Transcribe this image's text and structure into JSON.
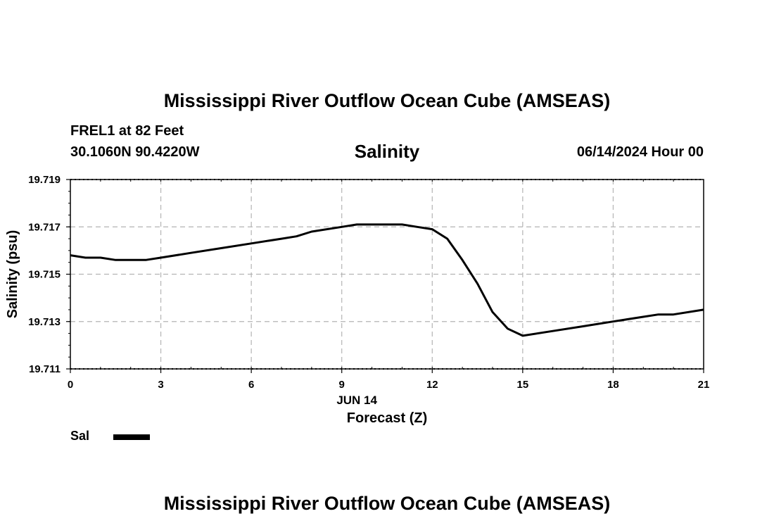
{
  "header": {
    "main_title": "Mississippi River Outflow Ocean Cube (AMSEAS)",
    "station": "FREL1 at 82 Feet",
    "coords": "30.1060N  90.4220W",
    "variable": "Salinity",
    "datetime": "06/14/2024 Hour 00"
  },
  "footer": {
    "repeat_title": "Mississippi River Outflow Ocean Cube (AMSEAS)"
  },
  "legend": {
    "label": "Sal"
  },
  "chart_data": {
    "type": "line",
    "title": "Salinity",
    "xlabel": "Forecast (Z)",
    "xsublabel": "JUN 14",
    "ylabel": "Salinity (psu)",
    "xlim": [
      0,
      21
    ],
    "ylim": [
      19.711,
      19.719
    ],
    "xticks": [
      0,
      3,
      6,
      9,
      12,
      15,
      18,
      21
    ],
    "yticks": [
      19.711,
      19.713,
      19.715,
      19.717,
      19.719
    ],
    "ytick_labels": [
      "19.711",
      "19.713",
      "19.715",
      "19.717",
      "19.719"
    ],
    "grid": true,
    "series": [
      {
        "name": "Sal",
        "color": "#000000",
        "x": [
          0,
          0.5,
          1,
          1.5,
          2,
          2.5,
          3,
          4,
          5,
          6,
          7,
          7.5,
          8,
          9,
          9.5,
          10,
          11,
          11.5,
          12,
          12.5,
          13,
          13.5,
          14,
          14.5,
          15,
          16,
          17,
          18,
          19,
          19.5,
          20,
          21
        ],
        "y": [
          19.7158,
          19.7157,
          19.7157,
          19.7156,
          19.7156,
          19.7156,
          19.7157,
          19.7159,
          19.7161,
          19.7163,
          19.7165,
          19.7166,
          19.7168,
          19.717,
          19.7171,
          19.7171,
          19.7171,
          19.717,
          19.7169,
          19.7165,
          19.7156,
          19.7146,
          19.7134,
          19.7127,
          19.7124,
          19.7126,
          19.7128,
          19.713,
          19.7132,
          19.7133,
          19.7133,
          19.7135
        ]
      }
    ]
  }
}
